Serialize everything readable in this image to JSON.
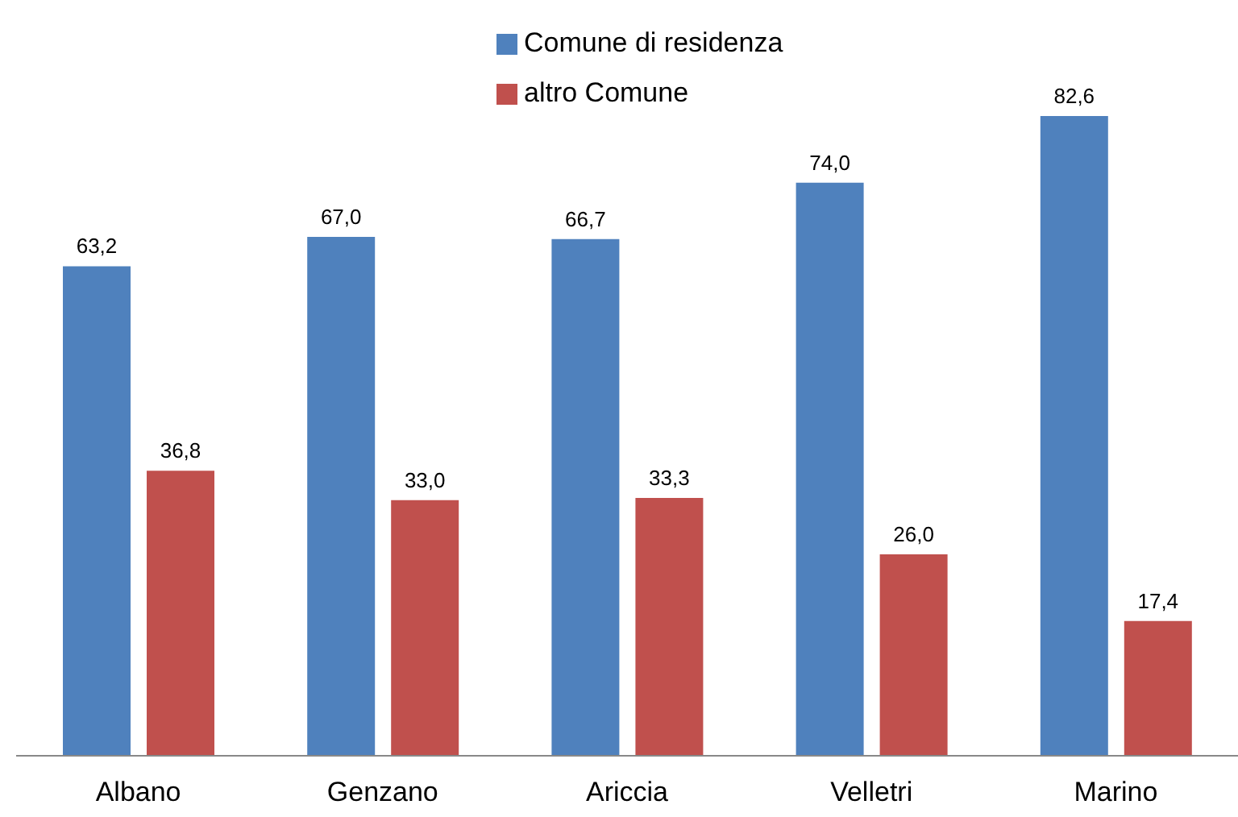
{
  "chart_data": {
    "type": "bar",
    "categories": [
      "Albano",
      "Genzano",
      "Ariccia",
      "Velletri",
      "Marino"
    ],
    "series": [
      {
        "name": "Comune di residenza",
        "color": "#4f81bd",
        "values": [
          63.2,
          67.0,
          66.7,
          74.0,
          82.6
        ],
        "value_labels": [
          "63,2",
          "67,0",
          "66,7",
          "74,0",
          "82,6"
        ]
      },
      {
        "name": "altro Comune",
        "color": "#c0504d",
        "values": [
          36.8,
          33.0,
          33.3,
          26.0,
          17.4
        ],
        "value_labels": [
          "36,8",
          "33,0",
          "33,3",
          "26,0",
          "17,4"
        ]
      }
    ],
    "legend": "top"
  }
}
